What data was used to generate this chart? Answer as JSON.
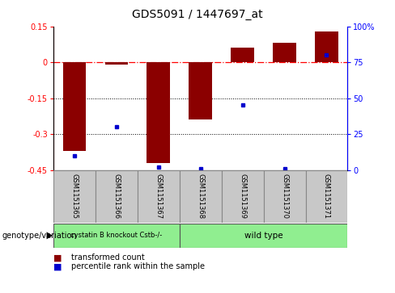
{
  "title": "GDS5091 / 1447697_at",
  "samples": [
    "GSM1151365",
    "GSM1151366",
    "GSM1151367",
    "GSM1151368",
    "GSM1151369",
    "GSM1151370",
    "GSM1151371"
  ],
  "red_bars": [
    -0.37,
    -0.01,
    -0.42,
    -0.24,
    0.06,
    0.08,
    0.13
  ],
  "blue_percentiles": [
    10,
    30,
    2,
    1,
    45,
    1,
    80
  ],
  "ylim": [
    -0.45,
    0.15
  ],
  "yticks_left": [
    -0.45,
    -0.3,
    -0.15,
    0.0,
    0.15
  ],
  "ytick_labels_left": [
    "-0.45",
    "-0.3",
    "-0.15",
    "0",
    "0.15"
  ],
  "yticks_right": [
    0,
    25,
    50,
    75,
    100
  ],
  "ytick_labels_right": [
    "0",
    "25",
    "50",
    "75",
    "100%"
  ],
  "hlines": [
    -0.15,
    -0.3
  ],
  "zero_line": 0.0,
  "group1_label": "cystatin B knockout Cstb-/-",
  "group2_label": "wild type",
  "group1_count": 3,
  "group2_count": 4,
  "group_color": "#90EE90",
  "bar_color": "#8B0000",
  "dot_color": "#0000CD",
  "col_color": "#C8C8C8",
  "bg_color": "#FFFFFF",
  "genotype_label": "genotype/variation",
  "legend1": "transformed count",
  "legend2": "percentile rank within the sample",
  "bar_width": 0.55,
  "title_fontsize": 10,
  "tick_fontsize": 7,
  "label_fontsize": 7.5
}
